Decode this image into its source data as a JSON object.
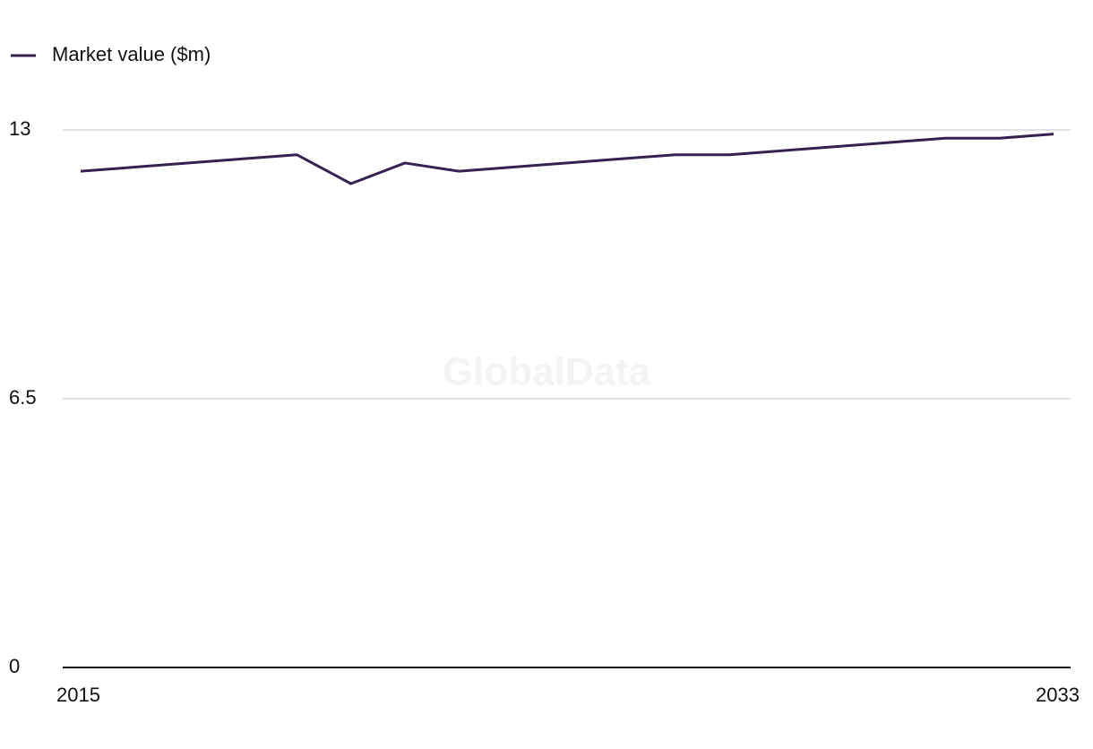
{
  "chart_data": {
    "type": "line",
    "watermark": "GlobalData",
    "x": [
      2015,
      2016,
      2017,
      2018,
      2019,
      2020,
      2021,
      2022,
      2023,
      2024,
      2025,
      2026,
      2027,
      2028,
      2029,
      2030,
      2031,
      2032,
      2033
    ],
    "series": [
      {
        "name": "Market value ($m)",
        "color": "#35224f",
        "values": [
          12.0,
          12.1,
          12.2,
          12.3,
          12.4,
          11.7,
          12.2,
          12.0,
          12.1,
          12.2,
          12.3,
          12.4,
          12.4,
          12.5,
          12.6,
          12.7,
          12.8,
          12.8,
          12.9
        ]
      }
    ],
    "xlim": [
      2015,
      2033
    ],
    "xticks": [
      2015,
      2033
    ],
    "ylim": [
      0,
      13
    ],
    "yticks": [
      0,
      6.5,
      13
    ],
    "grid": true,
    "legend": "top-left"
  }
}
